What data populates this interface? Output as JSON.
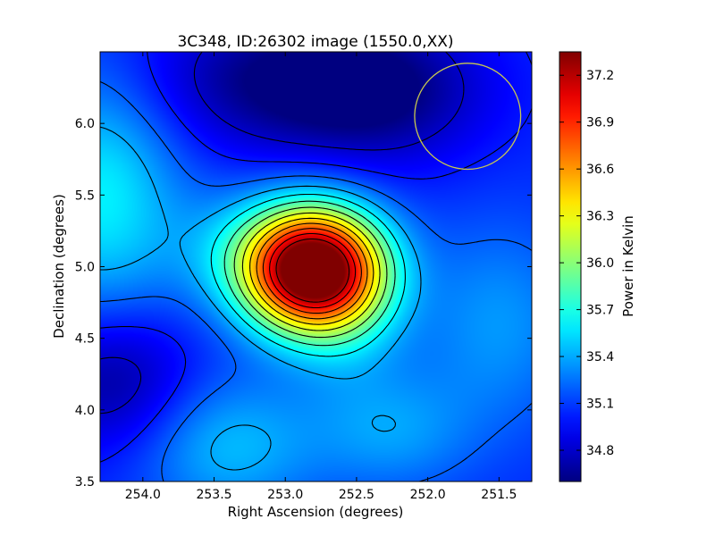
{
  "chart_data": {
    "type": "heatmap",
    "title": "3C348, ID:26302 image (1550.0,XX)",
    "xlabel": "Right Ascension (degrees)",
    "ylabel": "Declination (degrees)",
    "colorbar_label": "Power in Kelvin",
    "colormap": "jet",
    "x_reversed": true,
    "xlim": [
      254.3,
      251.27
    ],
    "ylim": [
      3.5,
      6.5
    ],
    "xticks": [
      254.0,
      253.5,
      253.0,
      252.5,
      252.0,
      251.5
    ],
    "xtick_labels": [
      "254.0",
      "253.5",
      "253.0",
      "252.5",
      "252.0",
      "251.5"
    ],
    "yticks": [
      3.5,
      4.0,
      4.5,
      5.0,
      5.5,
      6.0
    ],
    "ytick_labels": [
      "3.5",
      "4.0",
      "4.5",
      "5.0",
      "5.5",
      "6.0"
    ],
    "color_range": [
      34.6,
      37.35
    ],
    "colorbar_ticks": [
      34.8,
      35.1,
      35.4,
      35.7,
      36.0,
      36.3,
      36.6,
      36.9,
      37.2
    ],
    "colorbar_tick_labels": [
      "34.8",
      "35.1",
      "35.4",
      "35.7",
      "36.0",
      "36.3",
      "36.6",
      "36.9",
      "37.2"
    ],
    "contour_levels": [
      34.8,
      35.0,
      35.2,
      35.4,
      35.6,
      35.8,
      36.0,
      36.2,
      36.4,
      36.6,
      36.8,
      37.0,
      37.2
    ],
    "peak": {
      "ra": 252.8,
      "dec": 4.98,
      "value": 37.3
    },
    "beam_circle": {
      "ra": 251.72,
      "dec": 6.05,
      "radius_deg": 0.37,
      "color": "#c8c850"
    },
    "source_components": [
      {
        "ra": 252.8,
        "dec": 4.98,
        "amp": 2.65,
        "sigma_ra": 0.34,
        "sigma_dec": 0.3
      },
      {
        "ra": 253.35,
        "dec": 5.1,
        "amp": 0.25,
        "sigma_ra": 0.35,
        "sigma_dec": 0.3
      },
      {
        "ra": 252.55,
        "dec": 4.55,
        "amp": 0.2,
        "sigma_ra": 0.3,
        "sigma_dec": 0.35
      },
      {
        "ra": 254.3,
        "dec": 5.5,
        "amp": 0.55,
        "sigma_ra": 0.4,
        "sigma_dec": 0.6
      },
      {
        "ra": 253.4,
        "dec": 3.75,
        "amp": 0.4,
        "sigma_ra": 0.45,
        "sigma_dec": 0.35
      },
      {
        "ra": 252.25,
        "dec": 3.85,
        "amp": 0.3,
        "sigma_ra": 0.4,
        "sigma_dec": 0.3
      },
      {
        "ra": 251.5,
        "dec": 4.6,
        "amp": 0.3,
        "sigma_ra": 0.4,
        "sigma_dec": 0.5
      },
      {
        "ra": 253.0,
        "dec": 6.3,
        "amp": -0.45,
        "sigma_ra": 0.7,
        "sigma_dec": 0.35
      },
      {
        "ra": 252.3,
        "dec": 6.2,
        "amp": -0.3,
        "sigma_ra": 0.5,
        "sigma_dec": 0.35
      },
      {
        "ra": 254.2,
        "dec": 4.2,
        "amp": -0.4,
        "sigma_ra": 0.4,
        "sigma_dec": 0.35
      }
    ],
    "background": 35.05
  }
}
